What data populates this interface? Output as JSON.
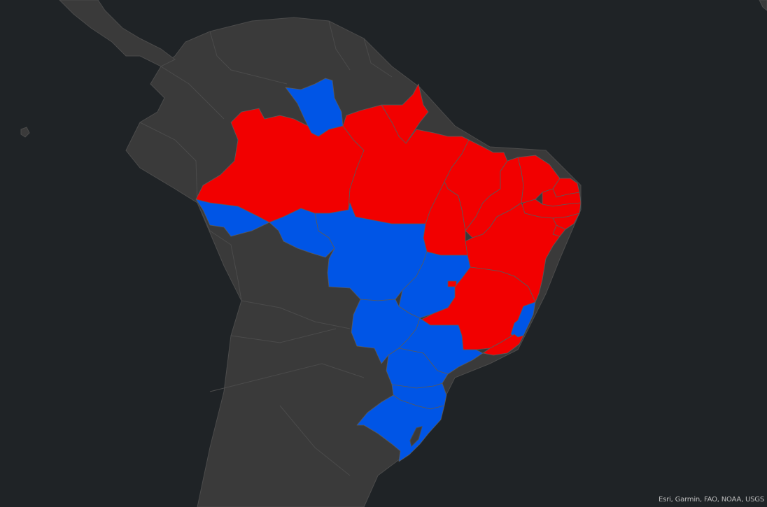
{
  "map": {
    "attribution": "Esri, Garmin, FAO, NOAA, USGS",
    "basemap_colors": {
      "ocean": "#1f2326",
      "land": "#3a3a3a",
      "boundary": "#4b4b4b"
    },
    "category_colors": {
      "red": "#f20000",
      "blue": "#0055e6"
    },
    "states": [
      {
        "id": "AC",
        "name": "Acre",
        "category": "blue"
      },
      {
        "id": "AM",
        "name": "Amazonas",
        "category": "red"
      },
      {
        "id": "RR",
        "name": "Roraima",
        "category": "blue"
      },
      {
        "id": "AP",
        "name": "Amapá",
        "category": "red"
      },
      {
        "id": "PA",
        "name": "Pará",
        "category": "red"
      },
      {
        "id": "MA",
        "name": "Maranhão",
        "category": "red"
      },
      {
        "id": "PI",
        "name": "Piauí",
        "category": "red"
      },
      {
        "id": "CE",
        "name": "Ceará",
        "category": "red"
      },
      {
        "id": "RN",
        "name": "Rio Grande do Norte",
        "category": "red"
      },
      {
        "id": "PB",
        "name": "Paraíba",
        "category": "red"
      },
      {
        "id": "PE",
        "name": "Pernambuco",
        "category": "red"
      },
      {
        "id": "AL",
        "name": "Alagoas",
        "category": "red"
      },
      {
        "id": "SE",
        "name": "Sergipe",
        "category": "red"
      },
      {
        "id": "BA",
        "name": "Bahia",
        "category": "red"
      },
      {
        "id": "TO",
        "name": "Tocantins",
        "category": "red"
      },
      {
        "id": "RO",
        "name": "Rondônia",
        "category": "blue"
      },
      {
        "id": "MT",
        "name": "Mato Grosso",
        "category": "blue"
      },
      {
        "id": "GO",
        "name": "Goiás",
        "category": "blue"
      },
      {
        "id": "DF",
        "name": "Distrito Federal",
        "category": "red"
      },
      {
        "id": "MS",
        "name": "Mato Grosso do Sul",
        "category": "blue"
      },
      {
        "id": "MG",
        "name": "Minas Gerais",
        "category": "red"
      },
      {
        "id": "ES",
        "name": "Espírito Santo",
        "category": "blue"
      },
      {
        "id": "RJ",
        "name": "Rio de Janeiro",
        "category": "red"
      },
      {
        "id": "SP",
        "name": "São Paulo",
        "category": "blue"
      },
      {
        "id": "PR",
        "name": "Paraná",
        "category": "blue"
      },
      {
        "id": "SC",
        "name": "Santa Catarina",
        "category": "blue"
      },
      {
        "id": "RS",
        "name": "Rio Grande do Sul",
        "category": "blue"
      }
    ]
  }
}
